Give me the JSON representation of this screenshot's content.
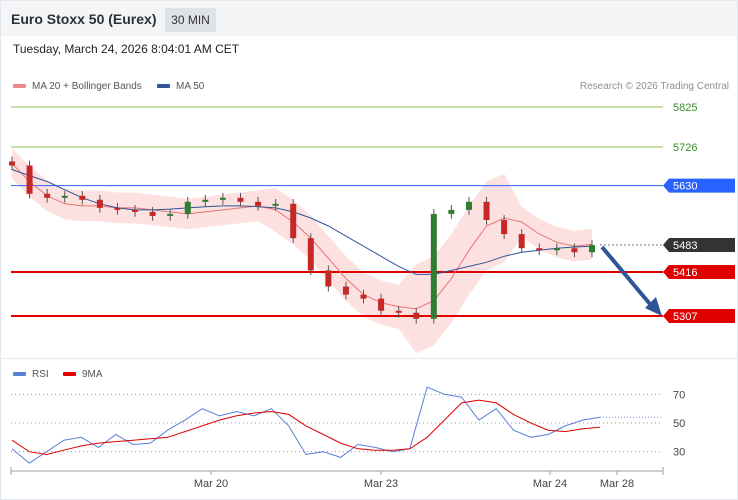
{
  "header": {
    "title": "Euro Stoxx 50 (Eurex)",
    "interval": "30 MIN",
    "timestamp": "Tuesday, March 24, 2026 8:04:01 AM CET"
  },
  "legend": {
    "ma20_label": "MA 20 + Bollinger Bands",
    "ma50_label": "MA 50",
    "copyright": "Research © 2026 Trading Central"
  },
  "rsi_legend": {
    "rsi_label": "RSI",
    "ma_label": "9MA"
  },
  "colors": {
    "bullish": "#2e7d32",
    "bearish": "#c62828",
    "ma20": "#e57373",
    "ma50": "#2f5597",
    "bands_fill": "#fcd9d9",
    "resistance_green": "#8bc34a",
    "pivot_blue": "#2962ff",
    "support_red": "#e00000",
    "last_price_bg": "#333333",
    "rsi_line": "#5b7fd6",
    "rsi_ma": "#e00000",
    "arrow": "#2f5597"
  },
  "chart_data": [
    {
      "type": "candlestick",
      "title": "Euro Stoxx 50 (Eurex)",
      "interval": "30 MIN",
      "ylim": [
        5260,
        5860
      ],
      "x_tick_labels": [
        "Mar 20",
        "Mar 23",
        "Mar 24",
        "Mar 28"
      ],
      "last_price": 5483,
      "levels": [
        {
          "value": 5825,
          "label": "5825",
          "kind": "resistance"
        },
        {
          "value": 5726,
          "label": "5726",
          "kind": "resistance"
        },
        {
          "value": 5630,
          "label": "5630",
          "kind": "pivot"
        },
        {
          "value": 5483,
          "label": "5483",
          "kind": "last"
        },
        {
          "value": 5416,
          "label": "5416",
          "kind": "support"
        },
        {
          "value": 5307,
          "label": "5307",
          "kind": "support"
        }
      ],
      "series": [
        {
          "name": "MA 20 + Bollinger Bands",
          "values": [
            5685,
            5640,
            5605,
            5585,
            5580,
            5580,
            5575,
            5575,
            5570,
            5565,
            5560,
            5565,
            5570,
            5575,
            5580,
            5570,
            5540,
            5500,
            5450,
            5400,
            5360,
            5340,
            5330,
            5325,
            5345,
            5400,
            5470,
            5530,
            5550,
            5540,
            5510,
            5490,
            5480,
            5485
          ]
        },
        {
          "name": "MA 50",
          "values": [
            5670,
            5655,
            5640,
            5620,
            5600,
            5585,
            5575,
            5570,
            5570,
            5572,
            5575,
            5578,
            5580,
            5580,
            5578,
            5575,
            5565,
            5550,
            5530,
            5505,
            5480,
            5455,
            5430,
            5410,
            5410,
            5420,
            5430,
            5440,
            5455,
            5465,
            5470,
            5475,
            5478,
            5480
          ]
        }
      ],
      "ohlc_close": [
        5680,
        5610,
        5600,
        5605,
        5595,
        5575,
        5570,
        5565,
        5555,
        5560,
        5590,
        5595,
        5600,
        5590,
        5580,
        5585,
        5500,
        5420,
        5380,
        5360,
        5350,
        5320,
        5315,
        5300,
        5560,
        5570,
        5590,
        5545,
        5510,
        5475,
        5470,
        5475,
        5465,
        5483
      ]
    },
    {
      "type": "line",
      "title": "",
      "ylim": [
        20,
        80
      ],
      "y_tick_labels": [
        "70",
        "50",
        "30"
      ],
      "series": [
        {
          "name": "RSI",
          "values": [
            32,
            22,
            30,
            38,
            40,
            33,
            42,
            35,
            36,
            45,
            52,
            60,
            55,
            58,
            55,
            60,
            48,
            28,
            30,
            26,
            35,
            33,
            30,
            32,
            75,
            70,
            68,
            52,
            60,
            45,
            40,
            42,
            48,
            52,
            54
          ]
        },
        {
          "name": "9MA",
          "values": [
            38,
            30,
            28,
            31,
            34,
            36,
            37,
            38,
            39,
            40,
            44,
            48,
            52,
            55,
            57,
            58,
            56,
            48,
            42,
            36,
            32,
            31,
            31,
            32,
            40,
            52,
            64,
            66,
            64,
            56,
            50,
            45,
            44,
            46,
            47
          ]
        }
      ]
    }
  ]
}
